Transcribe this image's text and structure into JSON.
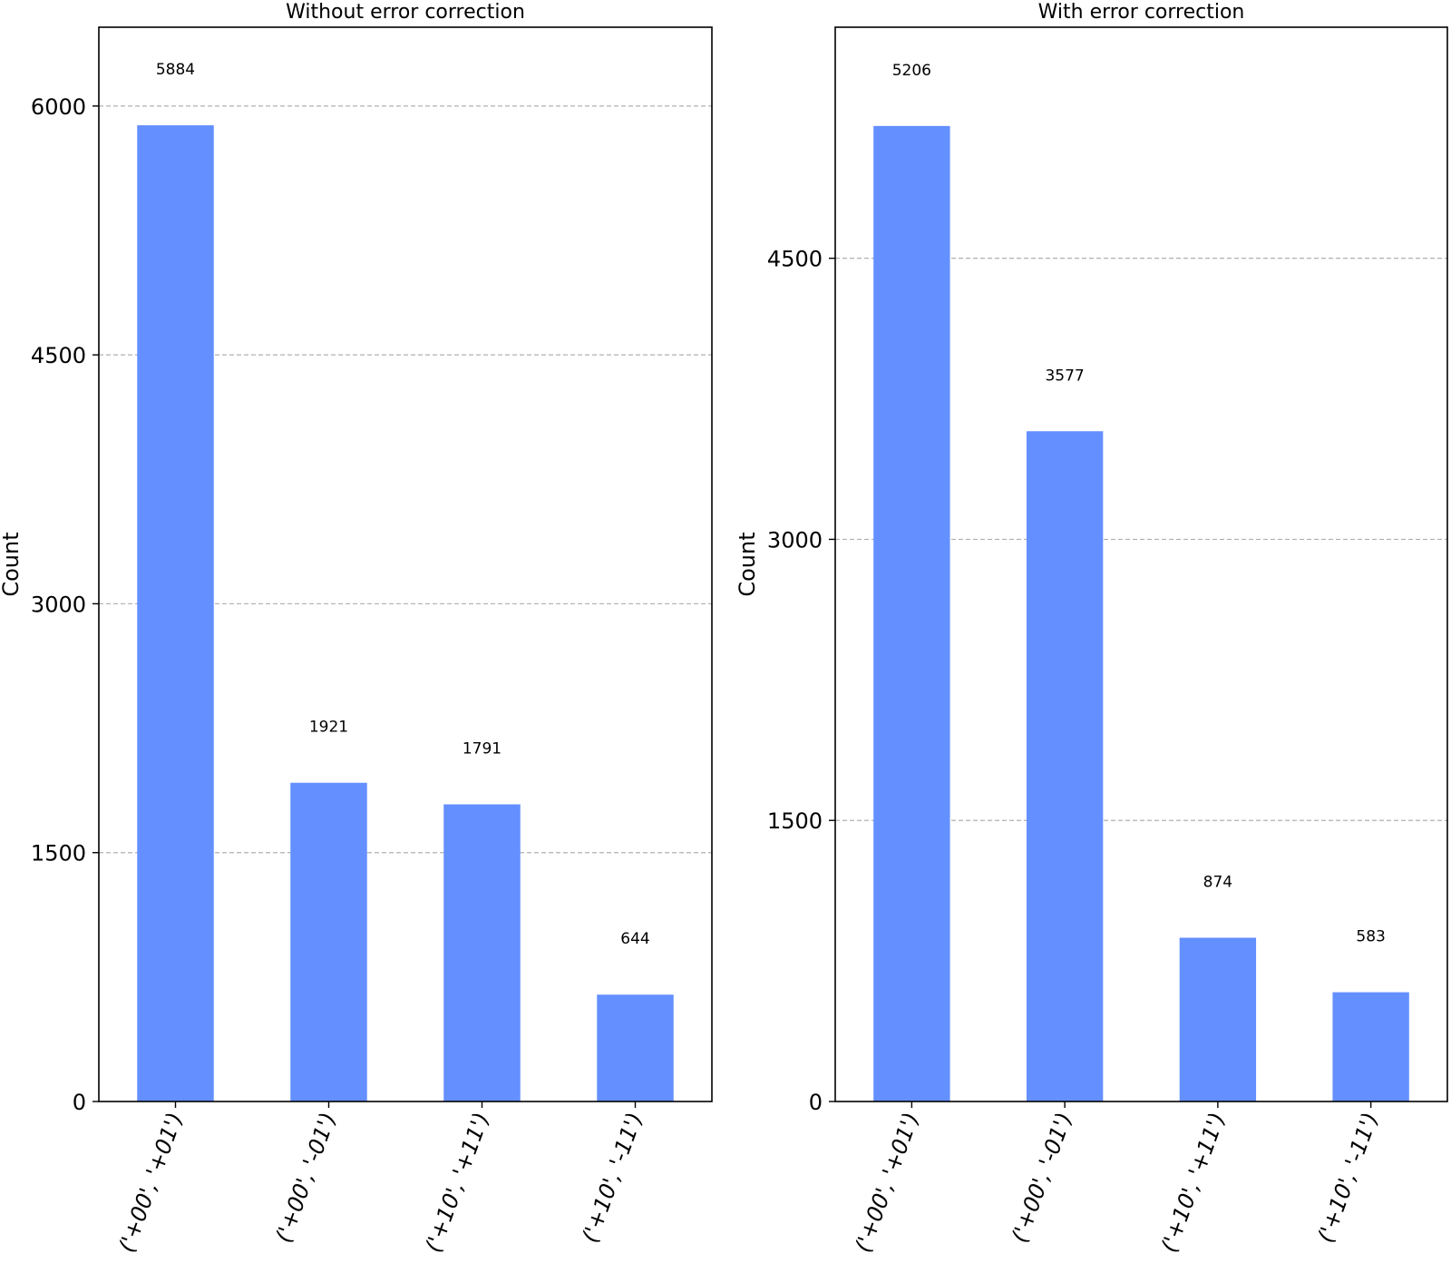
{
  "chart_data": [
    {
      "type": "bar",
      "title": "Without error correction",
      "xlabel": "",
      "ylabel": "Count",
      "categories": [
        "('+00', '+01')",
        "('+00', '-01')",
        "('+10', '+11')",
        "('+10', '-11')"
      ],
      "values": [
        5884,
        1921,
        1791,
        644
      ],
      "value_labels": [
        "5884",
        "1921",
        "1791",
        "644"
      ],
      "ylim": [
        0,
        6475
      ],
      "yticks": [
        0,
        1500,
        3000,
        4500,
        6000
      ],
      "ytick_labels": [
        "0",
        "1500",
        "3000",
        "4500",
        "6000"
      ],
      "grid": "horizontal dashed",
      "bar_color": "#648fff"
    },
    {
      "type": "bar",
      "title": "With error correction",
      "xlabel": "",
      "ylabel": "Count",
      "categories": [
        "('+00', '+01')",
        "('+00', '-01')",
        "('+10', '+11')",
        "('+10', '-11')"
      ],
      "values": [
        5206,
        3577,
        874,
        583
      ],
      "value_labels": [
        "5206",
        "3577",
        "874",
        "583"
      ],
      "ylim": [
        0,
        5733
      ],
      "yticks": [
        0,
        1500,
        3000,
        4500
      ],
      "ytick_labels": [
        "0",
        "1500",
        "3000",
        "4500"
      ],
      "grid": "horizontal dashed",
      "bar_color": "#648fff"
    }
  ]
}
